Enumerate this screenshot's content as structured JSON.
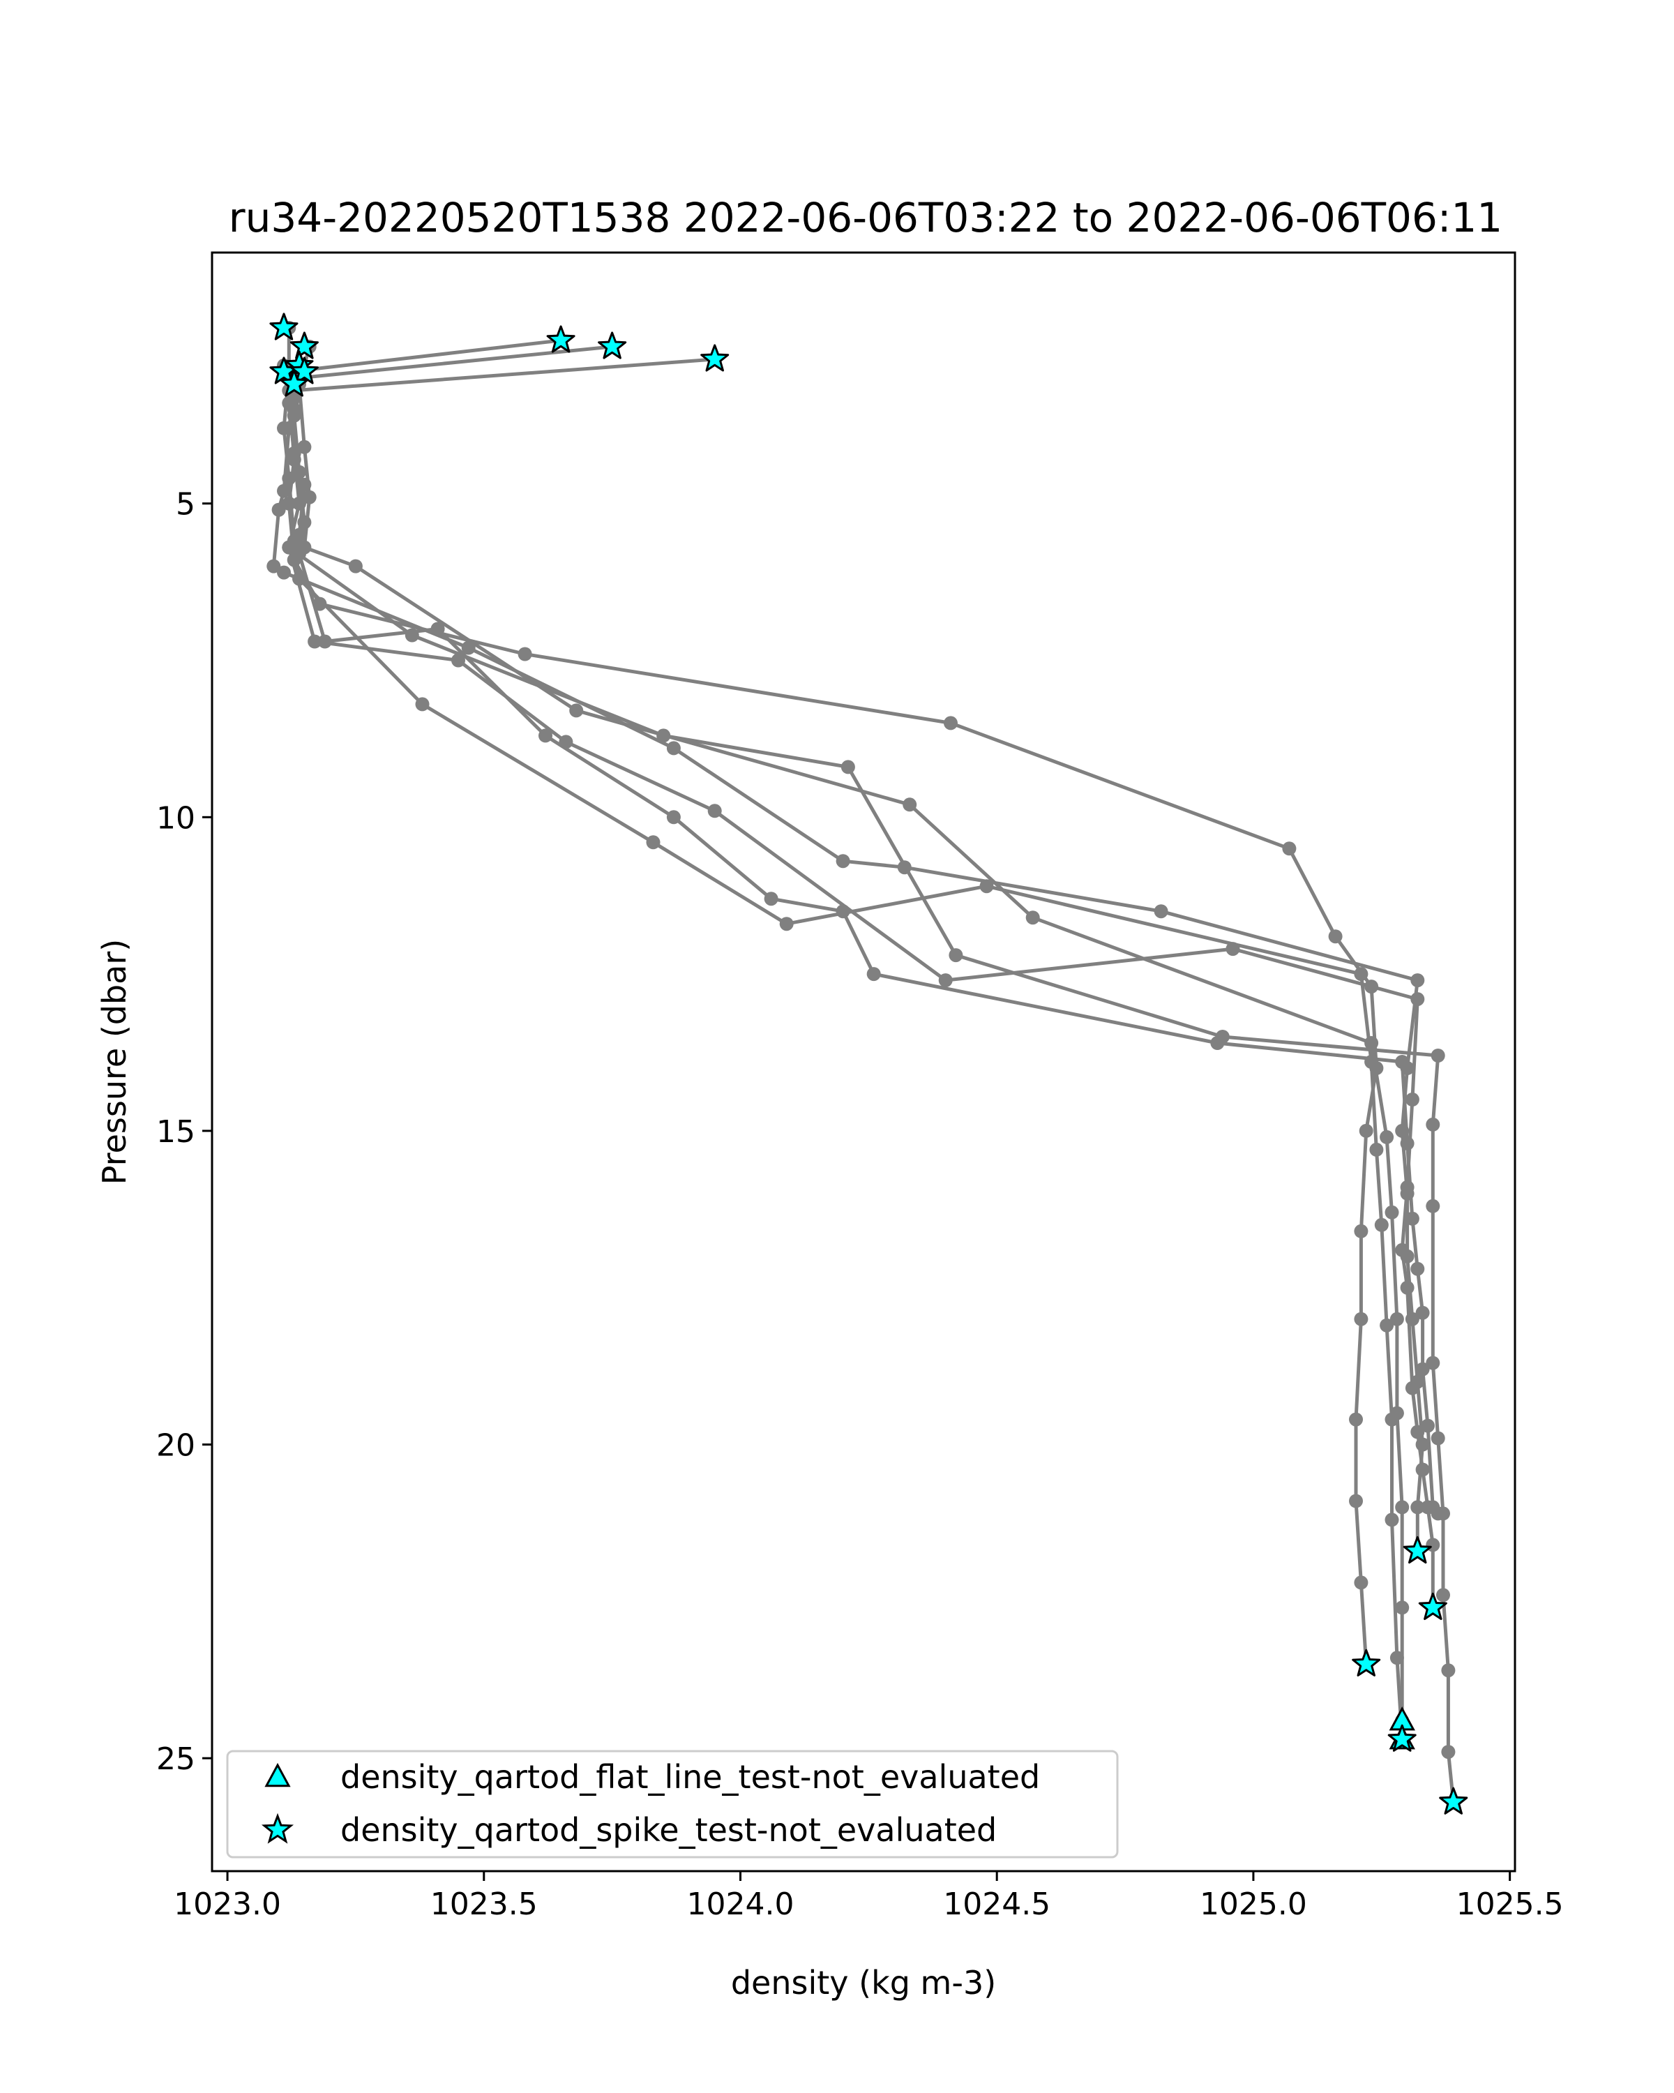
{
  "chart_data": {
    "type": "line",
    "title": "ru34-20220520T1538 2022-06-06T03:22 to 2022-06-06T06:11",
    "xlabel": "density (kg m-3)",
    "ylabel": "Pressure (dbar)",
    "xlim": [
      1022.97,
      1025.51
    ],
    "ylim": [
      26.8,
      1.0
    ],
    "y_inverted": true,
    "grid": false,
    "xticks": [
      1023.0,
      1023.5,
      1024.0,
      1024.5,
      1025.0,
      1025.5
    ],
    "xtick_labels": [
      "1023.0",
      "1023.5",
      "1024.0",
      "1024.5",
      "1025.0",
      "1025.5"
    ],
    "yticks": [
      5,
      10,
      15,
      20,
      25
    ],
    "ytick_labels": [
      "5",
      "10",
      "15",
      "20",
      "25"
    ],
    "line_color": "#808080",
    "marker_color": "#00ffff",
    "marker_edge_color": "#000000",
    "legend_position": "lower-left",
    "legend": [
      {
        "label": "density_qartod_flat_line_test-not_evaluated",
        "marker": "triangle"
      },
      {
        "label": "density_qartod_spike_test-not_evaluated",
        "marker": "star"
      }
    ],
    "series": [
      {
        "x": [
          1023.95,
          1023.13,
          1023.12,
          1023.11,
          1023.1,
          1023.09,
          1023.11,
          1023.47,
          1023.87,
          1024.2,
          1024.32,
          1024.82,
          1025.32,
          1025.3,
          1025.29,
          1025.3,
          1025.3,
          1025.31,
          1025.32,
          1025.33,
          1025.32,
          1025.32
        ],
        "y": [
          2.7,
          3.2,
          3.8,
          4.8,
          5.1,
          6.0,
          6.1,
          7.3,
          8.9,
          10.7,
          10.8,
          11.5,
          12.6,
          14.0,
          15.0,
          16.0,
          17.0,
          18.0,
          19.0,
          20.0,
          21.0,
          21.7
        ]
      },
      {
        "x": [
          1023.75,
          1023.14,
          1023.13,
          1023.13,
          1023.12,
          1023.13,
          1023.18,
          1023.58,
          1024.41,
          1025.07,
          1025.16,
          1025.23,
          1025.24,
          1025.22,
          1025.21,
          1025.21,
          1025.2,
          1025.2,
          1025.21,
          1025.22
        ],
        "y": [
          2.5,
          3.0,
          3.5,
          4.3,
          5.0,
          5.9,
          6.6,
          7.4,
          8.5,
          10.5,
          11.9,
          12.7,
          14.0,
          15.0,
          16.6,
          18.0,
          19.6,
          20.9,
          22.2,
          23.5
        ]
      },
      {
        "x": [
          1023.65,
          1023.12,
          1023.11,
          1023.12,
          1023.13,
          1023.14,
          1023.38,
          1023.83,
          1024.09,
          1024.48,
          1025.21,
          1025.23,
          1025.24,
          1025.25,
          1025.26,
          1025.27,
          1025.27,
          1025.28,
          1025.29
        ],
        "y": [
          2.4,
          2.9,
          3.8,
          4.6,
          5.6,
          6.2,
          8.2,
          10.4,
          11.7,
          11.1,
          12.5,
          13.9,
          15.3,
          16.5,
          18.1,
          19.6,
          21.2,
          23.4,
          24.7
        ]
      },
      {
        "x": [
          1023.16,
          1023.14,
          1023.15,
          1023.16,
          1023.15,
          1023.25,
          1023.68,
          1024.33,
          1024.57,
          1025.23,
          1025.26,
          1025.27,
          1025.28,
          1025.28,
          1025.29,
          1025.29,
          1025.29
        ],
        "y": [
          2.5,
          3.1,
          4.1,
          4.9,
          5.7,
          6.0,
          8.3,
          9.8,
          11.6,
          13.6,
          15.1,
          16.3,
          18.0,
          19.5,
          21.0,
          22.6,
          24.4
        ]
      },
      {
        "x": [
          1023.12,
          1023.12,
          1023.13,
          1023.15,
          1023.14,
          1023.12,
          1023.36,
          1023.85,
          1024.21,
          1024.42,
          1024.94,
          1025.36,
          1025.35,
          1025.35,
          1025.35,
          1025.36,
          1025.37,
          1025.37,
          1025.38,
          1025.38,
          1025.39
        ],
        "y": [
          2.2,
          3.2,
          4.3,
          4.7,
          5.5,
          5.7,
          7.1,
          8.7,
          9.2,
          12.2,
          13.5,
          13.8,
          14.9,
          16.2,
          18.7,
          19.9,
          21.1,
          22.4,
          23.6,
          24.9,
          25.7
        ]
      },
      {
        "x": [
          1023.11,
          1023.12,
          1023.13,
          1023.14,
          1023.12,
          1023.17,
          1023.45,
          1023.66,
          1023.95,
          1024.4,
          1024.96,
          1025.32,
          1025.31,
          1025.3,
          1025.29,
          1025.3,
          1025.31,
          1025.32,
          1025.33,
          1025.34,
          1025.35,
          1025.35
        ],
        "y": [
          2.8,
          3.4,
          4.2,
          5.0,
          5.7,
          7.2,
          7.5,
          8.8,
          9.9,
          12.6,
          12.1,
          12.9,
          14.5,
          15.9,
          16.9,
          17.5,
          19.1,
          19.8,
          20.4,
          21.0,
          21.6,
          22.6
        ]
      },
      {
        "x": [
          1023.15,
          1023.13,
          1023.14,
          1023.15,
          1023.14,
          1023.19,
          1023.41,
          1023.62,
          1023.87,
          1024.06,
          1024.2,
          1024.26,
          1024.93,
          1025.29,
          1025.3,
          1025.31,
          1025.32,
          1025.33,
          1025.33,
          1025.34,
          1025.35,
          1025.36
        ],
        "y": [
          2.9,
          3.6,
          4.5,
          5.3,
          5.8,
          7.2,
          7.0,
          8.7,
          10.0,
          11.3,
          11.5,
          12.5,
          13.6,
          13.9,
          15.2,
          16.4,
          17.2,
          17.9,
          18.8,
          19.7,
          21.0,
          21.1
        ]
      }
    ],
    "flat_line_markers": {
      "x": [
        1025.29,
        1025.29
      ],
      "y": [
        24.4,
        24.7
      ]
    },
    "spike_markers": {
      "x": [
        1023.11,
        1023.15,
        1023.65,
        1023.75,
        1023.95,
        1023.14,
        1023.11,
        1023.15,
        1023.13,
        1025.32,
        1025.35,
        1025.22,
        1025.29,
        1025.39
      ],
      "y": [
        2.2,
        2.5,
        2.4,
        2.5,
        2.7,
        2.8,
        2.9,
        2.9,
        3.1,
        21.7,
        22.6,
        23.5,
        24.7,
        25.7
      ]
    }
  }
}
